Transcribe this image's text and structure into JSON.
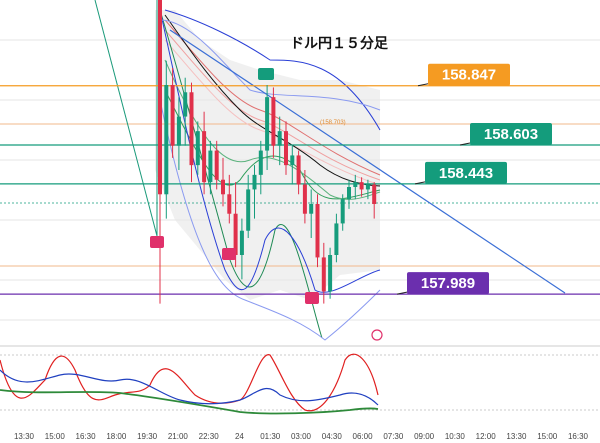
{
  "chart_data": {
    "type": "candlestick",
    "title": "ドル円１５分足",
    "x_ticks": [
      "13:30",
      "15:00",
      "16:30",
      "18:00",
      "19:30",
      "21:00",
      "22:30",
      "24",
      "01:30",
      "03:00",
      "04:30",
      "06:00",
      "07:30",
      "09:00",
      "10:30",
      "12:00",
      "13:30",
      "15:00",
      "16:30"
    ],
    "ylim": [
      157.8,
      159.2
    ],
    "levels": [
      {
        "value": 158.847,
        "label": "158.847",
        "color": "#f59b22"
      },
      {
        "value": 158.603,
        "label": "158.603",
        "color": "#149c7c"
      },
      {
        "value": 158.443,
        "label": "158.443",
        "color": "#149c7c"
      },
      {
        "value": 157.989,
        "label": "157.989",
        "color": "#6b2fae"
      }
    ],
    "fib_label": "(158.703)",
    "candles": [
      [
        159.3,
        159.32,
        157.95,
        158.4
      ],
      [
        158.4,
        158.95,
        158.3,
        158.85
      ],
      [
        158.85,
        158.92,
        158.55,
        158.6
      ],
      [
        158.6,
        158.8,
        158.5,
        158.72
      ],
      [
        158.72,
        158.88,
        158.6,
        158.82
      ],
      [
        158.82,
        158.86,
        158.45,
        158.52
      ],
      [
        158.52,
        158.7,
        158.48,
        158.66
      ],
      [
        158.66,
        158.74,
        158.4,
        158.45
      ],
      [
        158.45,
        158.62,
        158.4,
        158.58
      ],
      [
        158.58,
        158.62,
        158.42,
        158.46
      ],
      [
        158.46,
        158.55,
        158.35,
        158.4
      ],
      [
        158.4,
        158.48,
        158.28,
        158.32
      ],
      [
        158.32,
        158.45,
        158.1,
        158.15
      ],
      [
        158.15,
        158.3,
        158.05,
        158.25
      ],
      [
        158.25,
        158.48,
        158.22,
        158.42
      ],
      [
        158.42,
        158.52,
        158.3,
        158.48
      ],
      [
        158.48,
        158.62,
        158.4,
        158.58
      ],
      [
        158.58,
        158.85,
        158.5,
        158.8
      ],
      [
        158.8,
        158.84,
        158.55,
        158.6
      ],
      [
        158.6,
        158.72,
        158.52,
        158.66
      ],
      [
        158.66,
        158.7,
        158.48,
        158.52
      ],
      [
        158.52,
        158.6,
        158.44,
        158.56
      ],
      [
        158.56,
        158.58,
        158.4,
        158.44
      ],
      [
        158.44,
        158.5,
        158.28,
        158.32
      ],
      [
        158.32,
        158.42,
        158.22,
        158.36
      ],
      [
        158.36,
        158.4,
        158.1,
        158.14
      ],
      [
        158.14,
        158.2,
        157.95,
        158.0
      ],
      [
        158.0,
        158.18,
        157.97,
        158.15
      ],
      [
        158.15,
        158.32,
        158.12,
        158.28
      ],
      [
        158.28,
        158.4,
        158.25,
        158.38
      ],
      [
        158.38,
        158.46,
        158.34,
        158.43
      ],
      [
        158.43,
        158.48,
        158.38,
        158.45
      ],
      [
        158.45,
        158.47,
        158.39,
        158.42
      ],
      [
        158.42,
        158.46,
        158.38,
        158.44
      ],
      [
        158.44,
        158.45,
        158.3,
        158.36
      ]
    ]
  }
}
